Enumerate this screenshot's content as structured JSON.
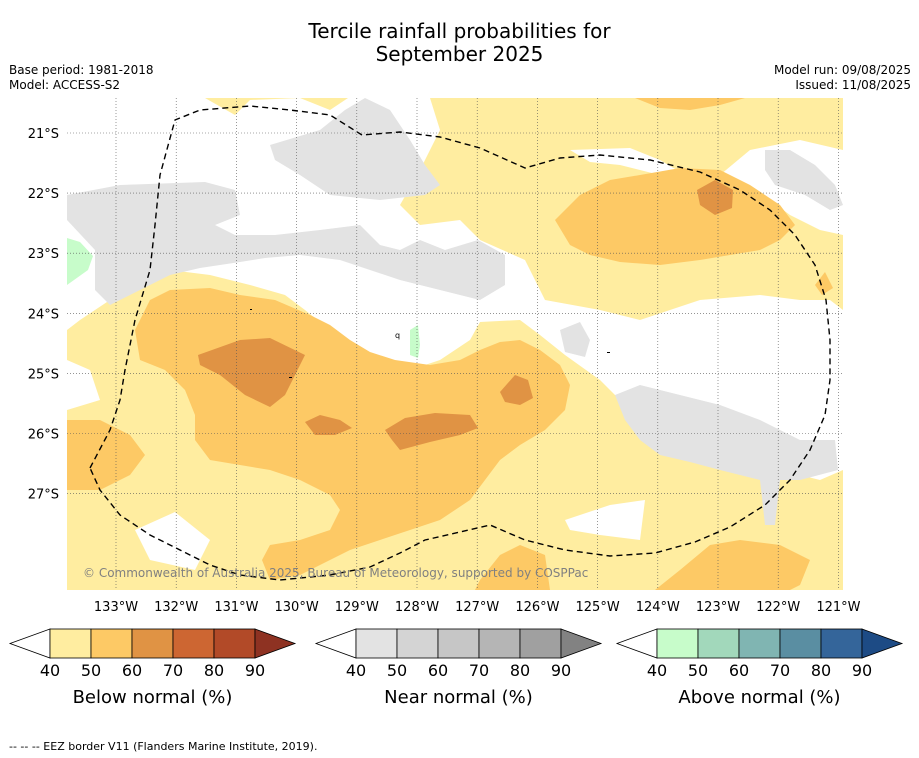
{
  "title_line1": "Tercile rainfall probabilities for",
  "title_line2": "September 2025",
  "base_period": "Base period: 1981-2018",
  "model": "Model: ACCESS-S2",
  "model_run": "Model run: 09/08/2025",
  "issued": "Issued: 11/08/2025",
  "copyright": "© Commonwealth of Australia 2025, Bureau of Meteorology, supported by COSPPac",
  "footer": "--  --  -- EEZ border V11 (Flanders Marine Institute, 2019).",
  "map": {
    "lon_labels": [
      "133°W",
      "132°W",
      "131°W",
      "130°W",
      "129°W",
      "128°W",
      "127°W",
      "126°W",
      "125°W",
      "124°W",
      "123°W",
      "122°W",
      "121°W"
    ],
    "lat_labels": [
      "21°S",
      "22°S",
      "23°S",
      "24°S",
      "25°S",
      "26°S",
      "27°S"
    ],
    "extent": {
      "lon_min": -133.8,
      "lon_max": -120.9,
      "lat_min": -28.6,
      "lat_max": -20.4
    }
  },
  "legends": [
    {
      "label": "Below normal (%)",
      "ticks": [
        "40",
        "50",
        "60",
        "70",
        "80",
        "90"
      ],
      "colors": [
        "#ffeda0",
        "#fdc965",
        "#e09344",
        "#cd6632",
        "#b24a28",
        "#8e3222"
      ]
    },
    {
      "label": "Near normal (%)",
      "ticks": [
        "40",
        "50",
        "60",
        "70",
        "80",
        "90"
      ],
      "colors": [
        "#e3e3e3",
        "#d4d4d4",
        "#c6c6c6",
        "#b5b5b5",
        "#a0a0a0",
        "#828282"
      ]
    },
    {
      "label": "Above normal (%)",
      "ticks": [
        "40",
        "50",
        "60",
        "70",
        "80",
        "90"
      ],
      "colors": [
        "#c7fcca",
        "#a2d8bb",
        "#80b5b2",
        "#5a8ea2",
        "#34659a",
        "#1d4b85"
      ]
    }
  ],
  "colors": {
    "below_40": "#ffeda0",
    "below_50": "#fdc965",
    "below_60": "#e09344",
    "near_40": "#e3e3e3",
    "above_40": "#c7fcca"
  }
}
